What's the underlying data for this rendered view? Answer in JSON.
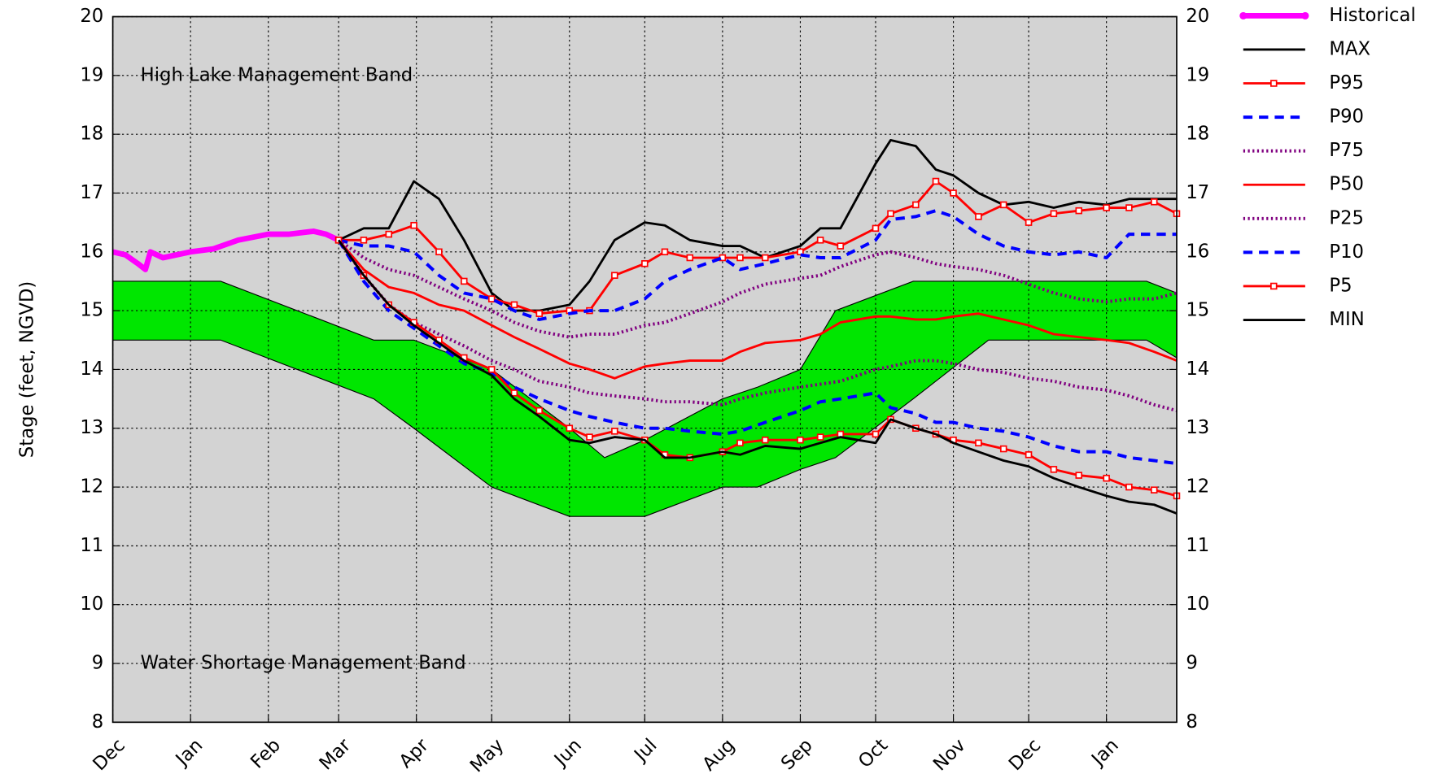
{
  "chart_data": {
    "type": "line",
    "ylabel": "Stage (feet, NGVD)",
    "annotations": [
      "High Lake Management Band",
      "Water Shortage Management Band"
    ],
    "xlim": [
      0,
      424
    ],
    "xticks": [
      {
        "value": 0,
        "label": "Dec"
      },
      {
        "value": 31,
        "label": "Jan"
      },
      {
        "value": 62,
        "label": "Feb"
      },
      {
        "value": 90,
        "label": "Mar"
      },
      {
        "value": 121,
        "label": "Apr"
      },
      {
        "value": 151,
        "label": "May"
      },
      {
        "value": 182,
        "label": "Jun"
      },
      {
        "value": 212,
        "label": "Jul"
      },
      {
        "value": 243,
        "label": "Aug"
      },
      {
        "value": 274,
        "label": "Sep"
      },
      {
        "value": 304,
        "label": "Oct"
      },
      {
        "value": 335,
        "label": "Nov"
      },
      {
        "value": 365,
        "label": "Dec"
      },
      {
        "value": 396,
        "label": "Jan"
      }
    ],
    "ylim": [
      8,
      20
    ],
    "yticks": [
      8,
      9,
      10,
      11,
      12,
      13,
      14,
      15,
      16,
      17,
      18,
      19,
      20
    ],
    "y2lim": [
      8,
      20
    ],
    "y2ticks": [
      8,
      9,
      10,
      11,
      12,
      13,
      14,
      15,
      16,
      17,
      18,
      19,
      20
    ],
    "grid": true,
    "legend": "outside-right",
    "background": "#d3d3d3",
    "band": {
      "color": "#00e600",
      "x": [
        0,
        43,
        104,
        120,
        151,
        182,
        196,
        212,
        243,
        257,
        274,
        288,
        319,
        349,
        412,
        424
      ],
      "upper": [
        15.5,
        15.5,
        14.5,
        14.5,
        14.0,
        13.0,
        12.5,
        12.8,
        13.5,
        13.7,
        14.0,
        15.0,
        15.5,
        15.5,
        15.5,
        15.3
      ],
      "lower": [
        14.5,
        14.5,
        13.5,
        13.0,
        12.0,
        11.5,
        11.5,
        11.5,
        12.0,
        12.0,
        12.3,
        12.5,
        13.5,
        14.5,
        14.5,
        14.2
      ]
    },
    "x": [
      90,
      100,
      110,
      120,
      130,
      140,
      151,
      160,
      170,
      182,
      190,
      200,
      212,
      220,
      230,
      243,
      250,
      260,
      274,
      282,
      290,
      304,
      310,
      320,
      328,
      335,
      345,
      355,
      365,
      375,
      385,
      396,
      405,
      415,
      424
    ],
    "series": [
      {
        "name": "Historical",
        "color": "#ff00ff",
        "style": "thick",
        "x": [
          0,
          5,
          10,
          13,
          15,
          20,
          31,
          40,
          50,
          62,
          70,
          80,
          85,
          90
        ],
        "values": [
          16.0,
          15.95,
          15.8,
          15.7,
          16.0,
          15.9,
          16.0,
          16.05,
          16.2,
          16.3,
          16.3,
          16.35,
          16.3,
          16.2
        ]
      },
      {
        "name": "MAX",
        "color": "#000000",
        "style": "solid",
        "values": [
          16.2,
          16.4,
          16.4,
          17.2,
          16.9,
          16.2,
          15.3,
          15.0,
          15.0,
          15.1,
          15.5,
          16.2,
          16.5,
          16.45,
          16.2,
          16.1,
          16.1,
          15.9,
          16.1,
          16.4,
          16.4,
          17.5,
          17.9,
          17.8,
          17.4,
          17.3,
          17.0,
          16.8,
          16.85,
          16.75,
          16.85,
          16.8,
          16.9,
          16.9,
          16.9
        ]
      },
      {
        "name": "P95",
        "color": "#ff0000",
        "style": "marker",
        "values": [
          16.2,
          16.2,
          16.3,
          16.45,
          16.0,
          15.5,
          15.2,
          15.1,
          14.95,
          15.0,
          15.0,
          15.6,
          15.8,
          16.0,
          15.9,
          15.9,
          15.9,
          15.9,
          16.0,
          16.2,
          16.1,
          16.4,
          16.65,
          16.8,
          17.2,
          17.0,
          16.6,
          16.8,
          16.5,
          16.65,
          16.7,
          16.75,
          16.75,
          16.85,
          16.65
        ]
      },
      {
        "name": "P90",
        "color": "#0000ff",
        "style": "dashed",
        "values": [
          16.2,
          16.1,
          16.1,
          16.0,
          15.6,
          15.3,
          15.2,
          15.0,
          14.85,
          14.95,
          15.0,
          15.0,
          15.2,
          15.5,
          15.7,
          15.9,
          15.7,
          15.8,
          15.95,
          15.9,
          15.9,
          16.2,
          16.55,
          16.6,
          16.7,
          16.6,
          16.3,
          16.1,
          16.0,
          15.95,
          16.0,
          15.9,
          16.3,
          16.3,
          16.3
        ]
      },
      {
        "name": "P75",
        "color": "#800080",
        "style": "dotted",
        "values": [
          16.2,
          15.9,
          15.7,
          15.6,
          15.4,
          15.2,
          15.0,
          14.8,
          14.65,
          14.55,
          14.6,
          14.6,
          14.75,
          14.8,
          14.95,
          15.15,
          15.3,
          15.45,
          15.55,
          15.6,
          15.75,
          15.95,
          16.0,
          15.9,
          15.8,
          15.75,
          15.7,
          15.6,
          15.45,
          15.3,
          15.2,
          15.15,
          15.2,
          15.2,
          15.3
        ]
      },
      {
        "name": "P50",
        "color": "#ff0000",
        "style": "solid",
        "values": [
          16.2,
          15.7,
          15.4,
          15.3,
          15.1,
          15.0,
          14.75,
          14.55,
          14.35,
          14.1,
          14.0,
          13.85,
          14.05,
          14.1,
          14.15,
          14.15,
          14.3,
          14.45,
          14.5,
          14.6,
          14.8,
          14.9,
          14.9,
          14.85,
          14.85,
          14.9,
          14.95,
          14.85,
          14.75,
          14.6,
          14.55,
          14.5,
          14.45,
          14.3,
          14.15
        ]
      },
      {
        "name": "P25",
        "color": "#800080",
        "style": "dotted",
        "values": [
          16.2,
          15.6,
          15.1,
          14.8,
          14.6,
          14.4,
          14.15,
          14.0,
          13.8,
          13.7,
          13.6,
          13.55,
          13.5,
          13.45,
          13.45,
          13.4,
          13.5,
          13.6,
          13.7,
          13.75,
          13.8,
          14.0,
          14.05,
          14.15,
          14.15,
          14.1,
          14.0,
          13.95,
          13.85,
          13.8,
          13.7,
          13.65,
          13.55,
          13.4,
          13.3
        ]
      },
      {
        "name": "P10",
        "color": "#0000ff",
        "style": "dashed",
        "values": [
          16.2,
          15.5,
          15.0,
          14.7,
          14.4,
          14.1,
          13.95,
          13.7,
          13.5,
          13.3,
          13.2,
          13.1,
          13.0,
          13.0,
          12.95,
          12.9,
          12.95,
          13.1,
          13.3,
          13.45,
          13.5,
          13.6,
          13.35,
          13.25,
          13.1,
          13.1,
          13.0,
          12.95,
          12.85,
          12.7,
          12.6,
          12.6,
          12.5,
          12.45,
          12.4
        ]
      },
      {
        "name": "P5",
        "color": "#ff0000",
        "style": "marker",
        "values": [
          16.2,
          15.6,
          15.1,
          14.8,
          14.5,
          14.2,
          14.0,
          13.6,
          13.3,
          13.0,
          12.85,
          12.95,
          12.8,
          12.55,
          12.5,
          12.6,
          12.75,
          12.8,
          12.8,
          12.85,
          12.9,
          12.9,
          13.15,
          13.0,
          12.9,
          12.8,
          12.75,
          12.65,
          12.55,
          12.3,
          12.2,
          12.15,
          12.0,
          11.95,
          11.85
        ]
      },
      {
        "name": "MIN",
        "color": "#000000",
        "style": "solid",
        "values": [
          16.2,
          15.6,
          15.1,
          14.75,
          14.45,
          14.15,
          13.9,
          13.5,
          13.2,
          12.8,
          12.75,
          12.85,
          12.8,
          12.5,
          12.5,
          12.6,
          12.55,
          12.7,
          12.65,
          12.75,
          12.85,
          12.75,
          13.15,
          13.0,
          12.9,
          12.75,
          12.6,
          12.45,
          12.35,
          12.15,
          12.0,
          11.85,
          11.75,
          11.7,
          11.55
        ]
      }
    ]
  }
}
